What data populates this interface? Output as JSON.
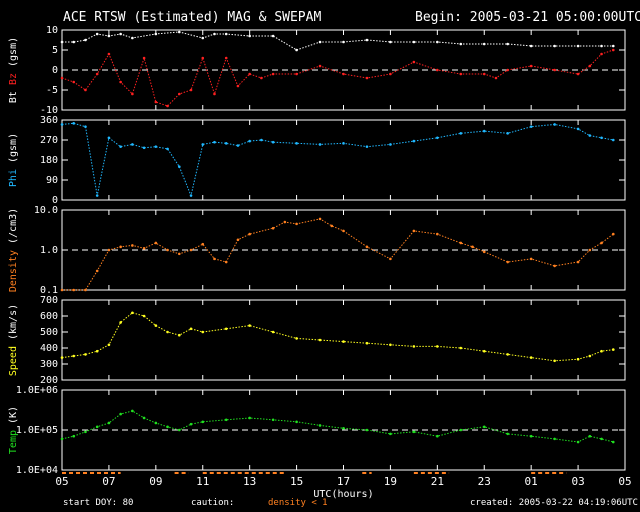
{
  "header": {
    "title": "ACE RTSW (Estimated) MAG & SWEPAM",
    "begin": "Begin: 2005-03-21 05:00:00UTC"
  },
  "footer": {
    "start_doy": "start DOY:  80",
    "caution": "caution:",
    "density_note": "density < 1",
    "created": "created: 2005-03-22 04:19:06UTC"
  },
  "colors": {
    "bt": "#ffffff",
    "bz": "#ff2020",
    "phi": "#20b8ff",
    "density": "#ff8020",
    "speed": "#ffff20",
    "temp": "#20e020",
    "caution": "#ff8020",
    "frame": "#ffffff"
  },
  "chart_data": [
    {
      "type": "scatter",
      "ylabel_parts": [
        "Bt",
        "Bz",
        "(gsm)"
      ],
      "ylim": [
        -10,
        10
      ],
      "yticks": [
        "10",
        "5",
        "0",
        "-5",
        "-10"
      ],
      "ref_line": 0,
      "series": [
        {
          "name": "Bt",
          "x": [
            0,
            0.5,
            1,
            1.5,
            2,
            2.5,
            3,
            4,
            5,
            6,
            6.5,
            7,
            8,
            9,
            10,
            11,
            12,
            13,
            14,
            15,
            16,
            17,
            18,
            19,
            20,
            21,
            22,
            23,
            23.5
          ],
          "y": [
            7,
            7,
            7.5,
            9,
            8.5,
            9,
            8,
            9,
            9.5,
            8,
            9,
            9,
            8.5,
            8.5,
            5,
            7,
            7,
            7.5,
            7,
            7,
            7,
            6.5,
            6.5,
            6.5,
            6,
            6,
            6,
            6,
            6
          ]
        },
        {
          "name": "Bz",
          "x": [
            0,
            0.5,
            1,
            1.5,
            2,
            2.5,
            3,
            3.5,
            4,
            4.5,
            5,
            5.5,
            6,
            6.5,
            7,
            7.5,
            8,
            8.5,
            9,
            10,
            11,
            12,
            13,
            14,
            15,
            16,
            17,
            18,
            18.5,
            19,
            20,
            21,
            22,
            22.5,
            23,
            23.5
          ],
          "y": [
            -2,
            -3,
            -5,
            -1,
            4,
            -3,
            -6,
            3,
            -8,
            -9,
            -6,
            -5,
            3,
            -6,
            3,
            -4,
            -1,
            -2,
            -1,
            -1,
            1,
            -1,
            -2,
            -1,
            2,
            0,
            -1,
            -1,
            -2,
            0,
            1,
            0,
            -1,
            1,
            4,
            5
          ]
        }
      ]
    },
    {
      "type": "scatter",
      "ylabel_parts": [
        "Phi",
        "(gsm)"
      ],
      "ylim": [
        0,
        360
      ],
      "yticks": [
        "360",
        "270",
        "180",
        "90",
        "0"
      ],
      "series": [
        {
          "name": "Phi",
          "x": [
            0,
            0.5,
            1,
            1.5,
            2,
            2.5,
            3,
            3.5,
            4,
            4.5,
            5,
            5.5,
            6,
            6.5,
            7,
            7.5,
            8,
            8.5,
            9,
            10,
            11,
            12,
            13,
            14,
            15,
            16,
            17,
            18,
            19,
            20,
            21,
            22,
            22.5,
            23,
            23.5
          ],
          "y": [
            340,
            345,
            330,
            20,
            280,
            240,
            250,
            235,
            240,
            230,
            150,
            20,
            250,
            260,
            255,
            245,
            265,
            270,
            260,
            255,
            250,
            255,
            240,
            250,
            265,
            280,
            300,
            310,
            300,
            330,
            340,
            320,
            290,
            280,
            270
          ]
        }
      ]
    },
    {
      "type": "scatter",
      "ylabel_parts": [
        "Density",
        "(/cm3)"
      ],
      "yscale": "log",
      "ylim": [
        0.1,
        10
      ],
      "yticks": [
        "10.0",
        "1.0",
        "0.1"
      ],
      "ref_line": 1.0,
      "series": [
        {
          "name": "Density",
          "x": [
            0,
            0.5,
            1,
            1.5,
            2,
            2.5,
            3,
            3.5,
            4,
            4.5,
            5,
            5.5,
            6,
            6.5,
            7,
            7.5,
            8,
            9,
            9.5,
            10,
            11,
            11.5,
            12,
            13,
            14,
            15,
            16,
            17,
            17.5,
            18,
            19,
            20,
            21,
            22,
            22.5,
            23,
            23.5
          ],
          "y": [
            0.1,
            0.1,
            0.1,
            0.3,
            1.0,
            1.2,
            1.3,
            1.1,
            1.5,
            1.0,
            0.8,
            1.0,
            1.4,
            0.6,
            0.5,
            1.8,
            2.5,
            3.5,
            5.0,
            4.5,
            6.0,
            4.0,
            3.0,
            1.2,
            0.6,
            3.0,
            2.5,
            1.5,
            1.2,
            0.9,
            0.5,
            0.6,
            0.4,
            0.5,
            1.0,
            1.5,
            2.5
          ]
        }
      ]
    },
    {
      "type": "scatter",
      "ylabel_parts": [
        "Speed",
        "(km/s)"
      ],
      "ylim": [
        200,
        700
      ],
      "yticks": [
        "700",
        "600",
        "500",
        "400",
        "300",
        "200"
      ],
      "series": [
        {
          "name": "Speed",
          "x": [
            0,
            0.5,
            1,
            1.5,
            2,
            2.5,
            3,
            3.5,
            4,
            4.5,
            5,
            5.5,
            6,
            7,
            8,
            9,
            10,
            11,
            12,
            13,
            14,
            15,
            16,
            17,
            18,
            19,
            20,
            21,
            22,
            22.5,
            23,
            23.5
          ],
          "y": [
            340,
            350,
            360,
            380,
            420,
            560,
            620,
            600,
            540,
            500,
            480,
            520,
            500,
            520,
            540,
            500,
            460,
            450,
            440,
            430,
            420,
            410,
            410,
            400,
            380,
            360,
            340,
            320,
            330,
            350,
            380,
            390
          ]
        }
      ]
    },
    {
      "type": "scatter",
      "ylabel_parts": [
        "Temp",
        "(K)"
      ],
      "yscale": "log",
      "ylim": [
        10000,
        1000000
      ],
      "yticks": [
        "1.0E+06",
        "1.0E+05",
        "1.0E+04"
      ],
      "ref_line": 100000,
      "series": [
        {
          "name": "Temp",
          "x": [
            0,
            0.5,
            1,
            1.5,
            2,
            2.5,
            3,
            3.5,
            4,
            4.5,
            5,
            5.5,
            6,
            7,
            8,
            9,
            10,
            11,
            12,
            13,
            14,
            15,
            16,
            17,
            18,
            19,
            20,
            21,
            22,
            22.5,
            23,
            23.5
          ],
          "y": [
            60000,
            70000,
            90000,
            120000,
            150000,
            250000,
            300000,
            200000,
            150000,
            120000,
            100000,
            140000,
            160000,
            180000,
            200000,
            180000,
            160000,
            130000,
            110000,
            100000,
            80000,
            90000,
            70000,
            100000,
            120000,
            80000,
            70000,
            60000,
            50000,
            70000,
            60000,
            50000
          ]
        }
      ]
    }
  ],
  "x_axis": {
    "label": "UTC(hours)",
    "xlim": [
      0,
      24
    ],
    "tick_labels": [
      "05",
      "07",
      "09",
      "11",
      "13",
      "15",
      "17",
      "19",
      "21",
      "23",
      "01",
      "03",
      "05"
    ]
  }
}
